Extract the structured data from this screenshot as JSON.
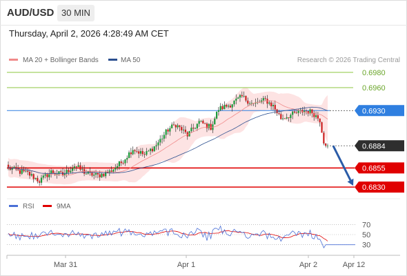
{
  "header": {
    "symbol": "AUD/USD",
    "timeframe": "30 MIN",
    "timestamp": "Thursday, April 2, 2026 4:28:49 AM CET"
  },
  "copyright": "Research © 2026 Trading Central",
  "colors": {
    "up": "#1a9a3a",
    "down": "#cc1f1f",
    "resistance_green": "#8cc63f",
    "pivot_blue": "#2f7fe0",
    "support_red": "#e00000",
    "ma20": "#f08a8a",
    "ma50": "#2b4f8f",
    "band_fill": "#fde3e3",
    "rsi": "#4a6fd6",
    "rsi_ma": "#e00000"
  },
  "chart_data": [
    {
      "type": "candlestick",
      "timeframe": "30 MIN",
      "legend": [
        {
          "name": "MA 20 + Bollinger Bands",
          "color": "#f08a8a"
        },
        {
          "name": "MA 50",
          "color": "#2b4f8f"
        }
      ],
      "x_ticks": [
        "Mar 31",
        "Apr 1",
        "Apr 2",
        "Apr 12"
      ],
      "y_range": [
        0.6822,
        0.6988
      ],
      "levels": [
        {
          "label": "0.6980",
          "value": 0.698,
          "type": "resistance"
        },
        {
          "label": "0.6960",
          "value": 0.696,
          "type": "resistance"
        },
        {
          "label": "0.6930",
          "value": 0.693,
          "type": "pivot"
        },
        {
          "label": "0.6884",
          "value": 0.6884,
          "type": "last"
        },
        {
          "label": "0.6855",
          "value": 0.6855,
          "type": "support"
        },
        {
          "label": "0.6830",
          "value": 0.683,
          "type": "support"
        }
      ],
      "forecast_arrow": {
        "from": 0.6884,
        "to": 0.683
      },
      "anchors": [
        [
          0,
          0.6855
        ],
        [
          6,
          0.685
        ],
        [
          10,
          0.6848
        ],
        [
          16,
          0.6838
        ],
        [
          22,
          0.685
        ],
        [
          28,
          0.6846
        ],
        [
          34,
          0.6858
        ],
        [
          40,
          0.6848
        ],
        [
          46,
          0.6845
        ],
        [
          52,
          0.685
        ],
        [
          58,
          0.6862
        ],
        [
          64,
          0.688
        ],
        [
          70,
          0.6872
        ],
        [
          76,
          0.6885
        ],
        [
          82,
          0.6905
        ],
        [
          86,
          0.6912
        ],
        [
          92,
          0.6898
        ],
        [
          98,
          0.6915
        ],
        [
          104,
          0.6908
        ],
        [
          108,
          0.6932
        ],
        [
          114,
          0.6938
        ],
        [
          120,
          0.6948
        ],
        [
          126,
          0.6938
        ],
        [
          132,
          0.6944
        ],
        [
          136,
          0.6936
        ],
        [
          140,
          0.692
        ],
        [
          146,
          0.6925
        ],
        [
          152,
          0.693
        ],
        [
          156,
          0.6928
        ],
        [
          160,
          0.6918
        ],
        [
          162,
          0.689
        ],
        [
          164,
          0.6884
        ]
      ]
    },
    {
      "type": "line",
      "name": "RSI",
      "legend": [
        {
          "name": "RSI",
          "color": "#4a6fd6"
        },
        {
          "name": "9MA",
          "color": "#e00000"
        }
      ],
      "y_ticks": [
        70,
        50,
        30
      ],
      "y_range": [
        20,
        80
      ],
      "last_value": 30
    }
  ]
}
